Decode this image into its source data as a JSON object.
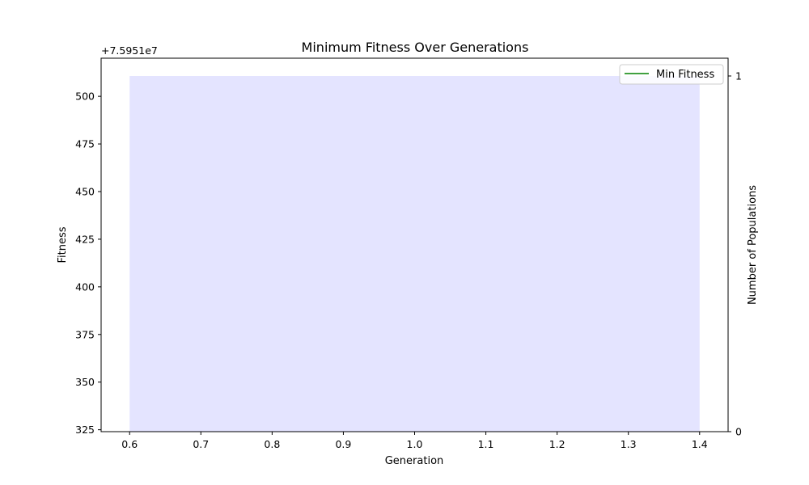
{
  "chart_data": {
    "type": "bar",
    "title": "Minimum Fitness Over Generations",
    "xlabel": "Generation",
    "ylabel": "Fitness",
    "y2label": "Number of Populations",
    "y_offset_text": "+7.5951e7",
    "xlim": [
      0.56,
      1.44
    ],
    "ylim": [
      324,
      520
    ],
    "y2lim": [
      0,
      1.05
    ],
    "x_ticks": [
      0.6,
      0.7,
      0.8,
      0.9,
      1.0,
      1.1,
      1.2,
      1.3,
      1.4
    ],
    "x_tick_labels": [
      "0.6",
      "0.7",
      "0.8",
      "0.9",
      "1.0",
      "1.1",
      "1.2",
      "1.3",
      "1.4"
    ],
    "y_ticks": [
      325,
      350,
      375,
      400,
      425,
      450,
      475,
      500
    ],
    "y_tick_labels": [
      "325",
      "350",
      "375",
      "400",
      "425",
      "450",
      "475",
      "500"
    ],
    "y2_ticks": [
      0,
      1
    ],
    "y2_tick_labels": [
      "0",
      "1"
    ],
    "bars": [
      {
        "x": 1.0,
        "width": 0.8,
        "value": 1,
        "color": "#e4e4ff"
      }
    ],
    "series": [
      {
        "name": "Min Fitness",
        "color": "#008000",
        "x": [
          1
        ],
        "y": [
          null
        ]
      }
    ],
    "legend_placement": "top-right",
    "grid": false
  }
}
